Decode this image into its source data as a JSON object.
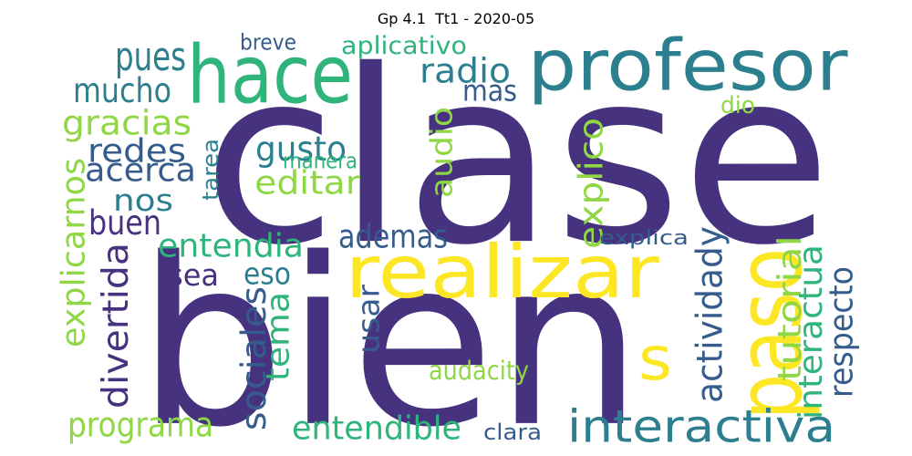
{
  "title": "Gp 4.1  Tt1 - 2020-05",
  "colors": {
    "purple": "#46327e",
    "teal": "#2c7f8e",
    "green": "#2fb47c",
    "lime": "#8fd744",
    "yellow": "#fde725",
    "blue": "#365c8d"
  },
  "words": [
    {
      "text": "clase",
      "color": "#46327e"
    },
    {
      "text": "bien",
      "color": "#46327e"
    },
    {
      "text": "profesor",
      "color": "#2c7f8e"
    },
    {
      "text": "hace",
      "color": "#2fb47c"
    },
    {
      "text": "realizar",
      "color": "#fde725"
    },
    {
      "text": "paso",
      "color": "#fde725"
    },
    {
      "text": "s",
      "color": "#fde725"
    },
    {
      "text": "interactiva",
      "color": "#2c7f8e"
    },
    {
      "text": "pues",
      "color": "#2c7f8e"
    },
    {
      "text": "mucho",
      "color": "#2c7f8e"
    },
    {
      "text": "breve",
      "color": "#365c8d"
    },
    {
      "text": "aplicativo",
      "color": "#2fb47c"
    },
    {
      "text": "radio",
      "color": "#2c7f8e"
    },
    {
      "text": "mas",
      "color": "#365c8d"
    },
    {
      "text": "gracias",
      "color": "#8fd744"
    },
    {
      "text": "redes",
      "color": "#365c8d"
    },
    {
      "text": "acerca",
      "color": "#365c8d"
    },
    {
      "text": "gusto",
      "color": "#2c7f8e"
    },
    {
      "text": "manera",
      "color": "#2fb47c"
    },
    {
      "text": "tarea",
      "color": "#2c7f8e"
    },
    {
      "text": "editar",
      "color": "#8fd744"
    },
    {
      "text": "audio",
      "color": "#8fd744"
    },
    {
      "text": "explico",
      "color": "#8fd744"
    },
    {
      "text": "dio",
      "color": "#8fd744"
    },
    {
      "text": "nos",
      "color": "#2c7f8e"
    },
    {
      "text": "buen",
      "color": "#46327e"
    },
    {
      "text": "explicarnos",
      "color": "#8fd744"
    },
    {
      "text": "entendia",
      "color": "#2fb47c"
    },
    {
      "text": "ademas",
      "color": "#365c8d"
    },
    {
      "text": "explica",
      "color": "#365c8d"
    },
    {
      "text": "sea",
      "color": "#46327e"
    },
    {
      "text": "eso",
      "color": "#2c7f8e"
    },
    {
      "text": "divertida",
      "color": "#46327e"
    },
    {
      "text": "usar",
      "color": "#365c8d"
    },
    {
      "text": "actividady",
      "color": "#365c8d"
    },
    {
      "text": "tutorial",
      "color": "#8fd744"
    },
    {
      "text": "interactua",
      "color": "#2fb47c"
    },
    {
      "text": "respecto",
      "color": "#365c8d"
    },
    {
      "text": "sociales",
      "color": "#365c8d"
    },
    {
      "text": "tema",
      "color": "#2fb47c"
    },
    {
      "text": "audacity",
      "color": "#8fd744"
    },
    {
      "text": "programa",
      "color": "#8fd744"
    },
    {
      "text": "entendible",
      "color": "#2fb47c"
    },
    {
      "text": "clara",
      "color": "#365c8d"
    }
  ]
}
